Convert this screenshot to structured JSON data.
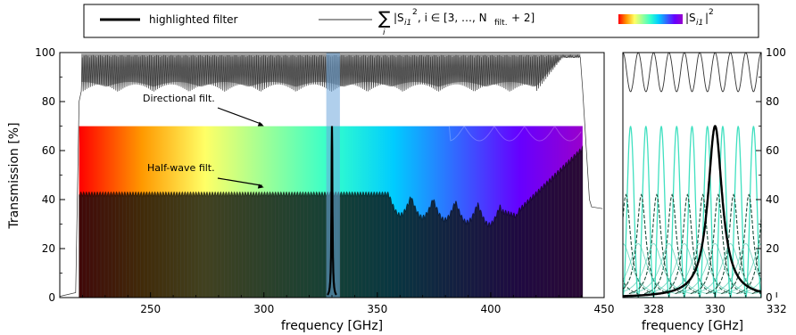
{
  "legend": {
    "highlighted_label": "highlighted filter",
    "sum_sigma": "∑",
    "sum_index": "i",
    "sum_body": "|S",
    "sum_sub": "i1",
    "sum_pow": "2",
    "sum_cond": ", i ∈ [3, …, N",
    "sum_cond_sub": "filt.",
    "sum_cond_end": " + 2]",
    "color_body": "|S",
    "color_sub": "i1",
    "color_pow": "2",
    "color_end": "|"
  },
  "chart_data": [
    {
      "type": "line",
      "panel": "main",
      "xlabel": "frequency [GHz]",
      "ylabel": "Transmission [%]",
      "xlim": [
        210,
        450
      ],
      "ylim": [
        0,
        100
      ],
      "xticks": [
        250,
        300,
        350,
        400,
        450
      ],
      "yticks": [
        0,
        20,
        40,
        60,
        80,
        100
      ],
      "highlight_band_GHz": [
        327.5,
        333.5
      ],
      "filter_start_GHz": 218.5,
      "filter_end_GHz": 440.5,
      "directional_level_percent": 70,
      "halfwave_level_percent": 41,
      "sum_upper_min_percent": 84,
      "sum_upper_max_percent": 100,
      "highlighted_peak": {
        "x": 330,
        "y": 70
      },
      "colormap_stops": [
        "#ff0000",
        "#ff9900",
        "#ffff66",
        "#99ff99",
        "#33ffcc",
        "#00ccff",
        "#3366ff",
        "#6600ff",
        "#9900cc"
      ],
      "annotations": [
        {
          "text": "Directional filt.",
          "points_to": {
            "x": 300,
            "y": 70
          }
        },
        {
          "text": "Half-wave filt.",
          "points_to": {
            "x": 300,
            "y": 45
          }
        }
      ],
      "colors": {
        "sum_line": "#333333",
        "highlight_line": "#000000",
        "band": "#6fa8dc"
      }
    },
    {
      "type": "line",
      "panel": "zoom",
      "xlabel": "frequency [GHz]",
      "xlim": [
        327,
        331.5
      ],
      "ylim": [
        0,
        100
      ],
      "xticks": [
        328,
        330,
        332
      ],
      "yticks": [
        0,
        20,
        40,
        60,
        80,
        100
      ],
      "channel_spacing_GHz": 0.5,
      "directional_peak_percent": 70,
      "halfwave_peak_percent": 42,
      "sum_min_percent": 84,
      "highlighted_peak": {
        "x": 330,
        "y": 70
      },
      "colors": {
        "directional": "#40e0c0",
        "halfwave": "#1a4d3a",
        "highlight": "#000000",
        "sum_line": "#333333"
      }
    }
  ]
}
